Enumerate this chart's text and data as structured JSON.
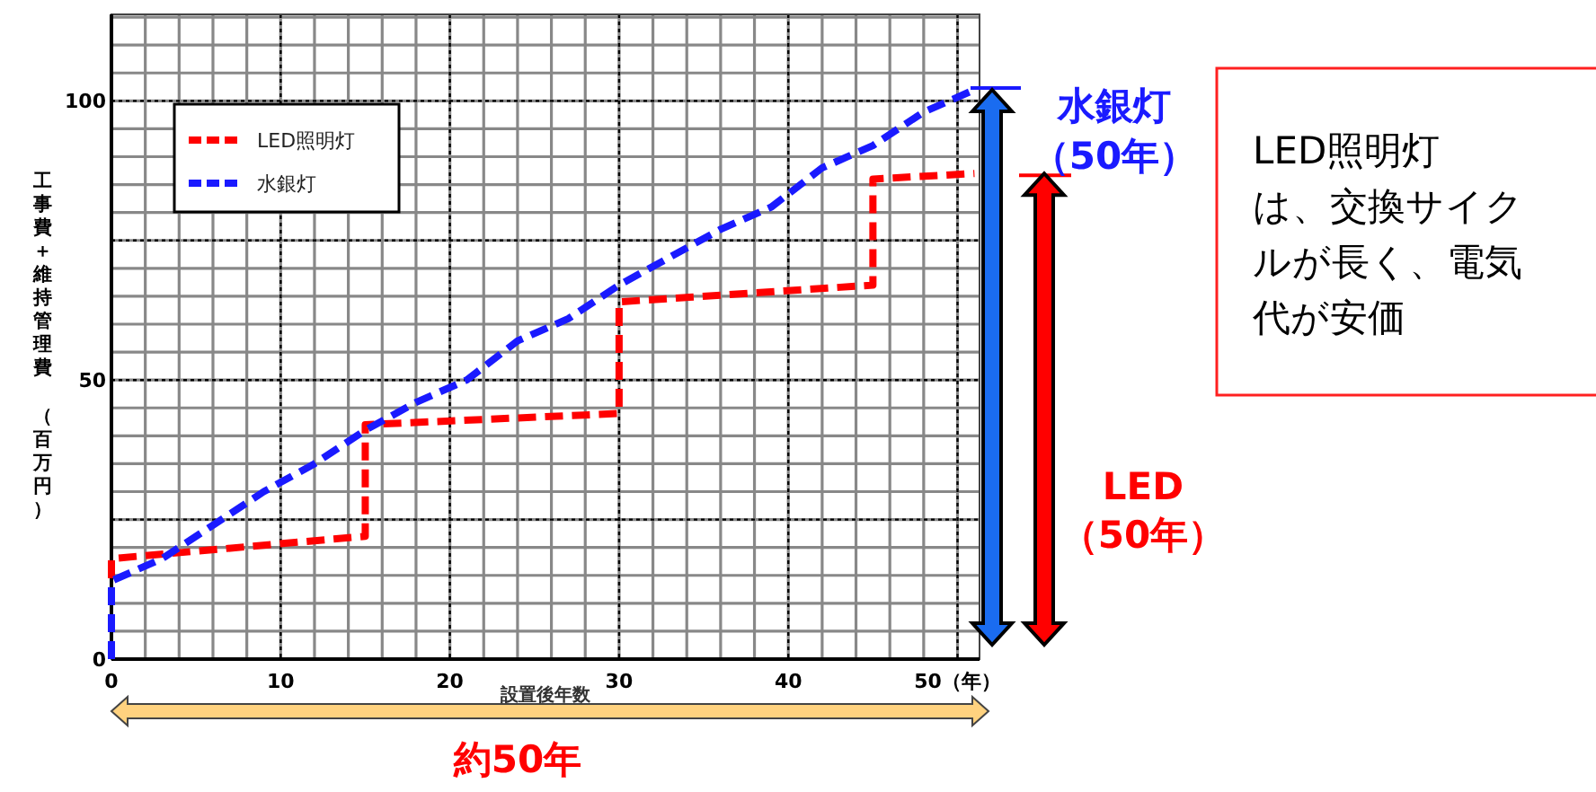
{
  "chart_data": {
    "type": "line",
    "xlabel": "設置後年数",
    "ylabel": "工事費＋維持管理費（百万円）",
    "xlim": [
      0,
      51.3
    ],
    "ylim": [
      0,
      115.5
    ],
    "xticks": [
      0,
      10,
      20,
      30,
      40,
      {
        "value": 50,
        "label": "50（年）"
      }
    ],
    "yticks": [
      0,
      50,
      100
    ],
    "grid": true,
    "legend": "top left",
    "line_style": "dashed",
    "series": [
      {
        "name": "LED照明灯",
        "color": "#ff0000",
        "x": [
          0,
          0,
          15,
          15,
          30,
          30,
          45,
          45,
          51
        ],
        "values": [
          0,
          18,
          22,
          42,
          44,
          64,
          67,
          86,
          87
        ]
      },
      {
        "name": "水銀灯",
        "color": "#1a1aff",
        "x": [
          0,
          0,
          3,
          6,
          9,
          12,
          15,
          18,
          21,
          24,
          27,
          30,
          33,
          36,
          39,
          42,
          45,
          48,
          51
        ],
        "values": [
          0,
          14,
          18,
          24,
          30,
          35,
          41,
          46,
          50,
          57,
          61,
          67,
          72,
          77,
          81,
          88,
          92,
          98,
          102
        ]
      }
    ],
    "annotations": [
      "水銀灯（50年）",
      "LED（50年）",
      "LED照明灯は、交換サイクルが長く、電気代が安価",
      "約50年"
    ]
  }
}
